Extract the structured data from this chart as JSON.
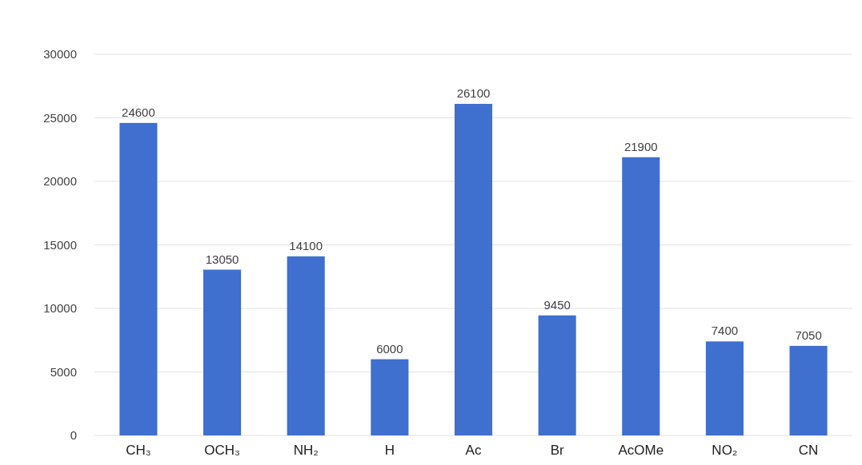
{
  "chart_data": {
    "type": "bar",
    "categories": [
      "CH₃",
      "OCH₃",
      "NH₂",
      "H",
      "Ac",
      "Br",
      "AcOMe",
      "NO₂",
      "CN"
    ],
    "values": [
      24600,
      13050,
      14100,
      6000,
      26100,
      9450,
      21900,
      7400,
      7050
    ],
    "color": "#3f6fcf",
    "ylim": [
      0,
      30000
    ],
    "yticks": [
      0,
      5000,
      10000,
      15000,
      20000,
      25000,
      30000
    ],
    "grid": true,
    "data_labels": true
  }
}
